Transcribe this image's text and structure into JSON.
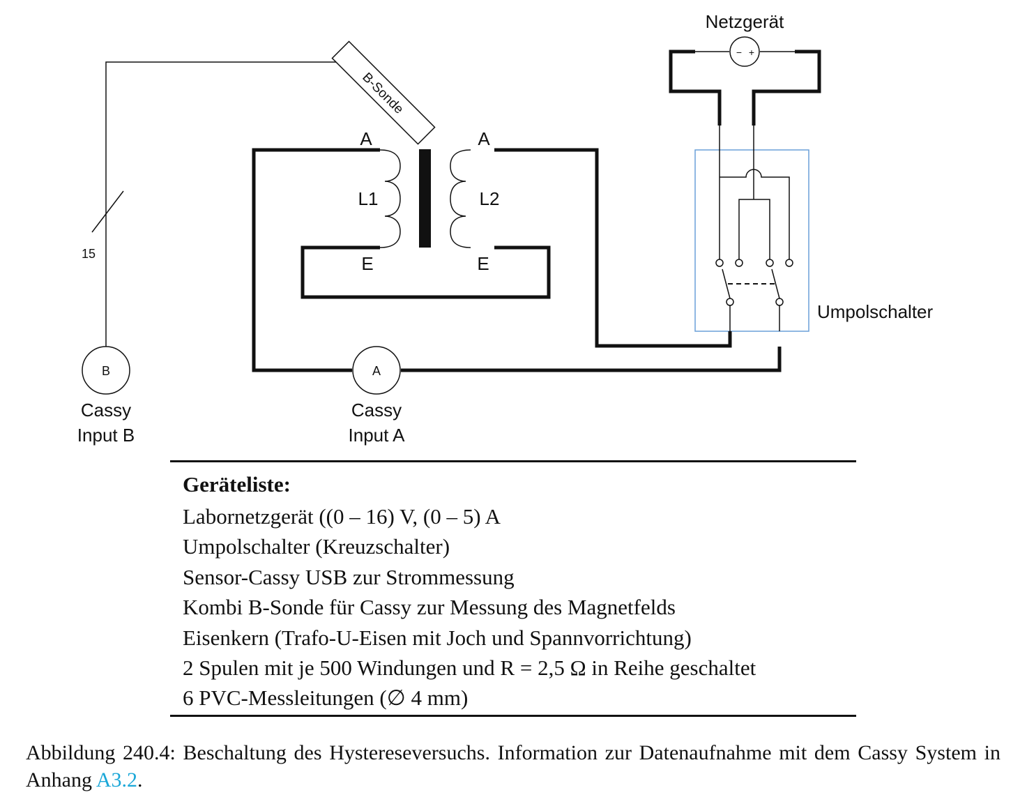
{
  "diagram": {
    "power_supply": {
      "label": "Netzgerät",
      "minus": "−",
      "plus": "+"
    },
    "probe": {
      "label": "B-Sonde"
    },
    "coil1": {
      "label": "L1",
      "start": "A",
      "end": "E"
    },
    "coil2": {
      "label": "L2",
      "start": "A",
      "end": "E"
    },
    "switch": {
      "label": "Umpolschalter"
    },
    "cable_marker": {
      "label": "15"
    },
    "meter_b": {
      "symbol": "B",
      "label_line1": "Cassy",
      "label_line2": "Input B"
    },
    "meter_a": {
      "symbol": "A",
      "label_line1": "Cassy",
      "label_line2": "Input A"
    },
    "colors": {
      "wire": "#111111",
      "switch_box": "#6a9fd8"
    }
  },
  "equipment": {
    "title": "Geräteliste:",
    "items": [
      "Labornetzgerät ((0 – 16) V, (0 – 5) A",
      "Umpolschalter (Kreuzschalter)",
      "Sensor-Cassy USB zur Strommessung",
      "Kombi B-Sonde für Cassy zur Messung des Magnetfelds",
      "Eisenkern (Trafo-U-Eisen mit Joch und Spannvorrichtung)",
      "2 Spulen mit je 500 Windungen und R = 2,5 Ω in Reihe geschaltet",
      "6 PVC-Messleitungen (∅ 4 mm)"
    ]
  },
  "caption": {
    "text": "Abbildung 240.4: Beschaltung des Hystereseversuchs. Information zur Datenaufnahme mit dem Cassy System in Anhang ",
    "link": "A3.2",
    "end": "."
  }
}
